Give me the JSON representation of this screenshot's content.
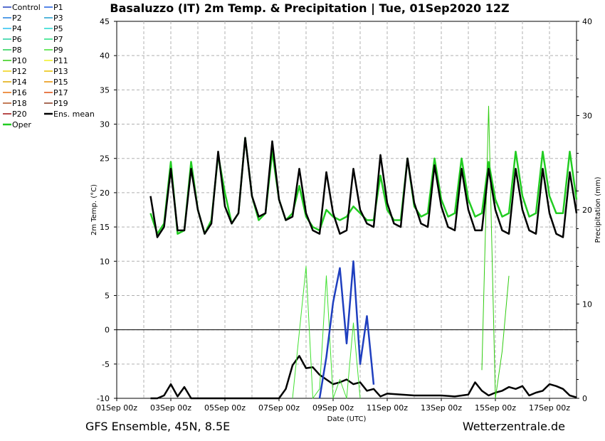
{
  "chart_data": {
    "type": "line",
    "title": "Basaluzzo  (IT)  2m Temp. & Precipitation | Tue, 01Sep2020 12Z",
    "xlabel": "Date (UTC)",
    "ylabel_left": "2m Temp. (°C)",
    "ylabel_right": "Precipitation (mm)",
    "ylim_left": [
      -10,
      45
    ],
    "ylim_right": [
      0,
      40
    ],
    "yticks_left": [
      "-10",
      "-5",
      "0",
      "5",
      "10",
      "15",
      "20",
      "25",
      "30",
      "35",
      "40",
      "45"
    ],
    "yticks_right": [
      "0",
      "10",
      "20",
      "30",
      "40"
    ],
    "xlim_days": [
      0,
      17
    ],
    "xticks": [
      {
        "day": 0,
        "label": "01Sep 00z"
      },
      {
        "day": 2,
        "label": "03Sep 00z"
      },
      {
        "day": 4,
        "label": "05Sep 00z"
      },
      {
        "day": 6,
        "label": "07Sep 00z"
      },
      {
        "day": 8,
        "label": "09Sep 00z"
      },
      {
        "day": 10,
        "label": "11Sep 00z"
      },
      {
        "day": 12,
        "label": "13Sep 00z"
      },
      {
        "day": 14,
        "label": "15Sep 00z"
      },
      {
        "day": 16,
        "label": "17Sep 00z"
      }
    ],
    "grid": true,
    "legend_position": "left-outside",
    "legend": [
      {
        "name": "Control",
        "color": "#1f3fbf"
      },
      {
        "name": "P1",
        "color": "#1f5fe0"
      },
      {
        "name": "P2",
        "color": "#1f7fe0"
      },
      {
        "name": "P3",
        "color": "#1f9fd0"
      },
      {
        "name": "P4",
        "color": "#29c0f0"
      },
      {
        "name": "P5",
        "color": "#20d8d0"
      },
      {
        "name": "P6",
        "color": "#20d0a0"
      },
      {
        "name": "P7",
        "color": "#20e080"
      },
      {
        "name": "P8",
        "color": "#20d050"
      },
      {
        "name": "P9",
        "color": "#40e030"
      },
      {
        "name": "P10",
        "color": "#30cc10"
      },
      {
        "name": "P11",
        "color": "#f0f020"
      },
      {
        "name": "P12",
        "color": "#f0d010"
      },
      {
        "name": "P13",
        "color": "#e8c000"
      },
      {
        "name": "P14",
        "color": "#e0a800"
      },
      {
        "name": "P15",
        "color": "#e89000"
      },
      {
        "name": "P16",
        "color": "#e87010"
      },
      {
        "name": "P17",
        "color": "#e05010"
      },
      {
        "name": "P18",
        "color": "#b05020"
      },
      {
        "name": "P19",
        "color": "#8b3a20"
      },
      {
        "name": "P20",
        "color": "#a01010"
      },
      {
        "name": "Ens. mean",
        "color": "#000000"
      },
      {
        "name": "Oper",
        "color": "#22cc22"
      }
    ],
    "series_temperature": [
      {
        "name": "Ens. mean",
        "x_days": [
          1.25,
          1.5,
          1.75,
          2,
          2.25,
          2.5,
          2.75,
          3,
          3.25,
          3.5,
          3.75,
          4,
          4.25,
          4.5,
          4.75,
          5,
          5.25,
          5.5,
          5.75,
          6,
          6.25,
          6.5,
          6.75,
          7,
          7.25,
          7.5,
          7.75,
          8,
          8.25,
          8.5,
          8.75,
          9,
          9.25,
          9.5,
          9.75,
          10,
          10.25,
          10.5,
          10.75,
          11,
          11.25,
          11.5,
          11.75,
          12,
          12.25,
          12.5,
          12.75,
          13,
          13.25,
          13.5,
          13.75,
          14,
          14.25,
          14.5,
          14.75,
          15,
          15.25,
          15.5,
          15.75,
          16,
          16.25,
          16.5,
          16.75,
          17
        ],
        "values": [
          19.5,
          13.5,
          15,
          23.5,
          14.5,
          14.5,
          23.5,
          17.5,
          14,
          15.5,
          26,
          18,
          15.5,
          17,
          28,
          19.5,
          16.5,
          17,
          27.5,
          19,
          16,
          16.5,
          23.5,
          17,
          14.5,
          14,
          23,
          17,
          14,
          14.5,
          23.5,
          17.5,
          15.5,
          15,
          25.5,
          18.5,
          15.5,
          15,
          25,
          18.5,
          15.5,
          15,
          24,
          18,
          15,
          14.5,
          23.5,
          17.5,
          14.5,
          14.5,
          23.5,
          17.5,
          14.5,
          14,
          23.5,
          17.5,
          14.5,
          14,
          23.5,
          17,
          14,
          13.5,
          23,
          17
        ]
      },
      {
        "name": "Oper",
        "x_days": [
          1.25,
          1.5,
          1.75,
          2,
          2.25,
          2.5,
          2.75,
          3,
          3.25,
          3.5,
          3.75,
          4,
          4.25,
          4.5,
          4.75,
          5,
          5.25,
          5.5,
          5.75,
          6,
          6.25,
          6.5,
          6.75,
          7,
          7.25,
          7.5,
          7.75,
          8,
          8.25,
          8.5,
          8.75,
          9,
          9.25,
          9.5,
          9.75,
          10,
          10.25,
          10.5,
          10.75,
          11,
          11.25,
          11.5,
          11.75,
          12,
          12.25,
          12.5,
          12.75,
          13,
          13.25,
          13.5,
          13.75,
          14,
          14.25,
          14.5,
          14.75,
          15,
          15.25,
          15.5,
          15.75,
          16,
          16.25,
          16.5,
          16.75,
          17
        ],
        "values": [
          17,
          14,
          15.5,
          24.5,
          14,
          14.5,
          24.5,
          17.5,
          14,
          16,
          25.5,
          20,
          15.5,
          17,
          28,
          19.5,
          16,
          17,
          26,
          19,
          16,
          17,
          21,
          16.5,
          15,
          14.5,
          17.5,
          16.5,
          16,
          16.5,
          18,
          17,
          16,
          16,
          22.5,
          17.5,
          16,
          16,
          25,
          18,
          16.5,
          17,
          25,
          19,
          16.5,
          17,
          25,
          19,
          16.5,
          17,
          24.5,
          19,
          16.5,
          17,
          26,
          19.5,
          16.5,
          17,
          26,
          19.5,
          17,
          17,
          26,
          19
        ]
      },
      {
        "name": "Control",
        "x_days": [
          7.5,
          7.75,
          8,
          8.25,
          8.5,
          8.75,
          9,
          9.25,
          9.5
        ],
        "values": [
          -10,
          -4,
          4,
          9,
          -2,
          10,
          -5,
          2,
          -8
        ]
      }
    ],
    "series_precipitation": [
      {
        "name": "Ens. mean",
        "x_days": [
          1.25,
          1.5,
          1.75,
          2,
          2.25,
          2.5,
          2.75,
          3,
          5.75,
          6,
          6.25,
          6.5,
          6.75,
          7,
          7.25,
          7.5,
          7.75,
          8,
          8.25,
          8.5,
          8.75,
          9,
          9.25,
          9.5,
          9.75,
          10,
          11,
          12,
          12.5,
          13,
          13.25,
          13.5,
          13.75,
          14,
          14.25,
          14.5,
          14.75,
          15,
          15.25,
          15.5,
          15.75,
          16,
          16.25,
          16.5,
          16.75,
          17
        ],
        "values": [
          0,
          0,
          0.3,
          1.5,
          0.2,
          1.2,
          0,
          0,
          0,
          0,
          1,
          3.5,
          4.5,
          3.2,
          3.3,
          2.5,
          2,
          1.5,
          1.7,
          2,
          1.5,
          1.7,
          0.8,
          1,
          0.2,
          0.5,
          0.3,
          0.3,
          0.2,
          0.4,
          1.7,
          0.8,
          0.3,
          0.6,
          0.8,
          1.2,
          1,
          1.3,
          0.3,
          0.6,
          0.8,
          1.5,
          1.3,
          1,
          0.3,
          0.1
        ]
      },
      {
        "name": "P9",
        "x_days": [
          6.5,
          7,
          7.25,
          7.5,
          7.75,
          8,
          8.25,
          8.5,
          8.75,
          9
        ],
        "values": [
          0,
          14,
          0,
          1,
          13,
          0,
          2,
          0,
          8,
          0
        ]
      },
      {
        "name": "P10",
        "x_days": [
          13.5,
          13.75,
          14,
          14.25,
          14.5
        ],
        "values": [
          3,
          31,
          0,
          5,
          13
        ]
      }
    ]
  },
  "footer": {
    "left": "GFS Ensemble, 45N, 8.5E",
    "right": "Wetterzentrale.de"
  }
}
